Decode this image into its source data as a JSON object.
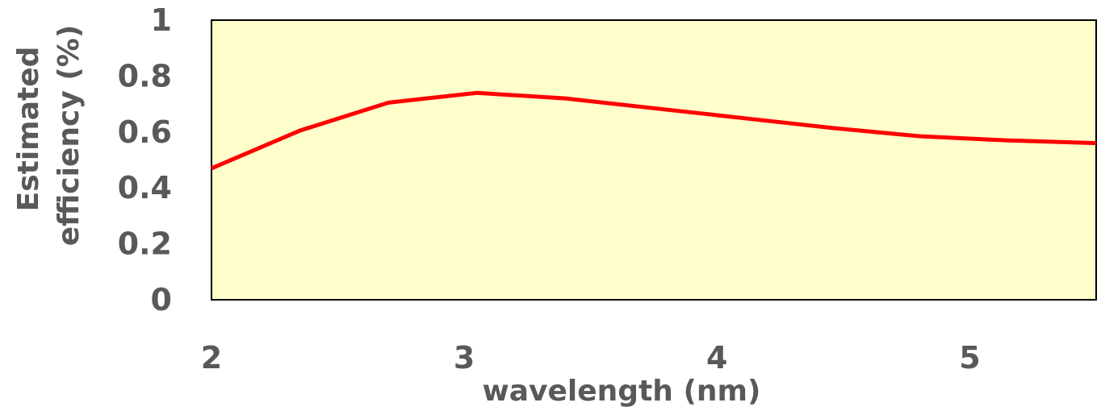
{
  "chart_data": {
    "type": "line",
    "xlabel": "wavelength (nm)",
    "ylabel_lines": [
      "Estimated",
      "efficiency (%)"
    ],
    "xlim": [
      2,
      5.5
    ],
    "ylim": [
      0,
      1
    ],
    "x_ticks": [
      2,
      3,
      4,
      5
    ],
    "y_ticks": [
      0,
      0.2,
      0.4,
      0.6,
      0.8,
      1
    ],
    "grid": false,
    "legend": "none",
    "plot_background": "#FFFFCC",
    "series": [
      {
        "color": "#FF0000",
        "x": [
          2.0,
          2.35,
          2.7,
          3.05,
          3.4,
          3.75,
          4.1,
          4.45,
          4.8,
          5.15,
          5.5
        ],
        "y": [
          0.47,
          0.605,
          0.705,
          0.74,
          0.72,
          0.685,
          0.65,
          0.615,
          0.585,
          0.57,
          0.56
        ]
      }
    ]
  }
}
